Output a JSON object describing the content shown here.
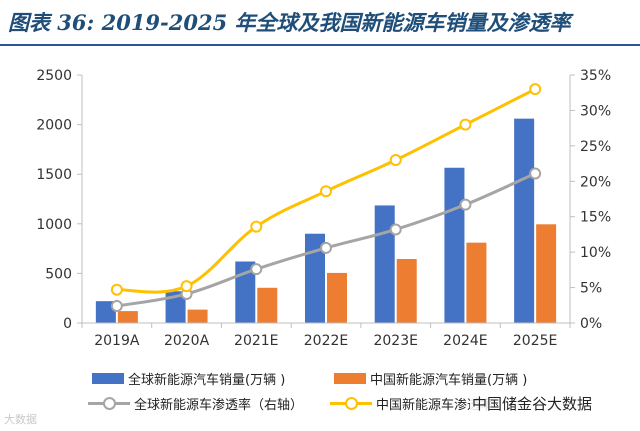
{
  "title": "图表 36: 2019-2025 年全球及我国新能源车销量及渗透率",
  "watermarks": {
    "left": "大数据",
    "right": "中国储金谷大数据"
  },
  "colors": {
    "global_bar": "#4472c4",
    "china_bar": "#ed7d31",
    "global_line": "#a5a5a5",
    "china_line": "#ffc000",
    "title": "#1f4e79"
  },
  "chart_data": {
    "type": "bar",
    "categories": [
      "2019A",
      "2020A",
      "2021E",
      "2022E",
      "2023E",
      "2024E",
      "2025E"
    ],
    "y_left": {
      "min": 0,
      "max": 2500,
      "ticks": [
        0,
        500,
        1000,
        1500,
        2000,
        2500
      ],
      "tick_labels": [
        "0",
        "500",
        "1000",
        "1500",
        "2000",
        "2500"
      ]
    },
    "y_right": {
      "min": 0,
      "max": 35,
      "ticks": [
        0,
        5,
        10,
        15,
        20,
        25,
        30,
        35
      ],
      "tick_labels": [
        "0%",
        "5%",
        "10%",
        "15%",
        "20%",
        "25%",
        "30%",
        "35%"
      ]
    },
    "series": [
      {
        "name": "全球新能源汽车销量(万辆 )",
        "type": "bar",
        "axis": "left",
        "values": [
          220,
          320,
          620,
          900,
          1185,
          1565,
          2060
        ]
      },
      {
        "name": "中国新能源汽车销量(万辆 )",
        "type": "bar",
        "axis": "left",
        "values": [
          120,
          135,
          355,
          505,
          645,
          810,
          995
        ]
      },
      {
        "name": "全球新能源车渗透率（右轴）",
        "type": "line",
        "axis": "right",
        "values": [
          2.4,
          4.1,
          7.6,
          10.6,
          13.2,
          16.7,
          21.1
        ]
      },
      {
        "name": "中国新能源车渗透率",
        "type": "line",
        "axis": "right",
        "values": [
          4.7,
          5.2,
          13.6,
          18.6,
          23.0,
          28.0,
          33.0
        ]
      }
    ],
    "grid": false,
    "legend": "bottom"
  }
}
